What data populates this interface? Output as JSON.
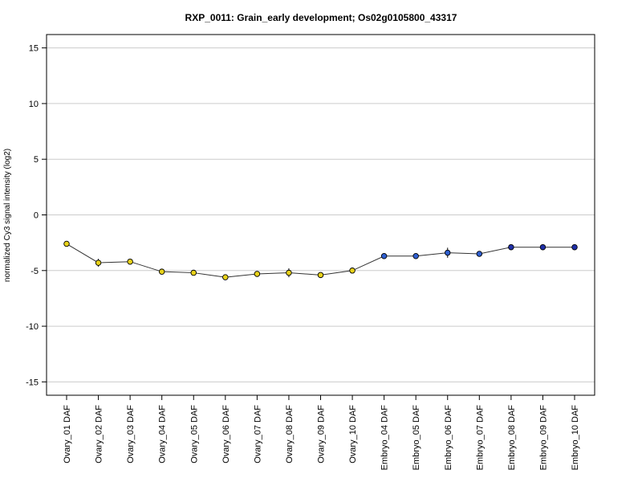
{
  "chart_data": {
    "type": "line",
    "title": "RXP_0011: Grain_early development; Os02g0105800_43317",
    "ylabel": "normalized Cy3 signal intensity (log2)",
    "xlabel": "",
    "ylim": [
      -16.2,
      16.2
    ],
    "yticks": [
      -15,
      -10,
      -5,
      0,
      5,
      10,
      15
    ],
    "grid": true,
    "categories": [
      "Ovary_01 DAF",
      "Ovary_02 DAF",
      "Ovary_03 DAF",
      "Ovary_04 DAF",
      "Ovary_05 DAF",
      "Ovary_06 DAF",
      "Ovary_07 DAF",
      "Ovary_08 DAF",
      "Ovary_09 DAF",
      "Ovary_10 DAF",
      "Embryo_04 DAF",
      "Embryo_05 DAF",
      "Embryo_06 DAF",
      "Embryo_07 DAF",
      "Embryo_08 DAF",
      "Embryo_09 DAF",
      "Embryo_10 DAF"
    ],
    "series": [
      {
        "values": [
          -2.6,
          -4.3,
          -4.2,
          -5.1,
          -5.2,
          -5.6,
          -5.3,
          -5.2,
          -5.4,
          -5.0,
          -3.7,
          -3.7,
          -3.4,
          -3.5,
          -2.9,
          -2.9,
          -2.9
        ],
        "errors": [
          0.15,
          0.35,
          0.15,
          0.1,
          0.1,
          0.1,
          0.15,
          0.4,
          0.1,
          0.2,
          0.15,
          0.15,
          0.45,
          0.15,
          0.1,
          0.1,
          0.1
        ],
        "point_colors": [
          "#e8d21a",
          "#e8d21a",
          "#e8d21a",
          "#e8d21a",
          "#e8d21a",
          "#e8d21a",
          "#e8d21a",
          "#e8d21a",
          "#e8d21a",
          "#e8d21a",
          "#2f5fd0",
          "#2f5fd0",
          "#2f5fd0",
          "#2f5fd0",
          "#1f2fa8",
          "#1f2fa8",
          "#1f2fa8"
        ],
        "line_color": "#333333"
      }
    ]
  }
}
